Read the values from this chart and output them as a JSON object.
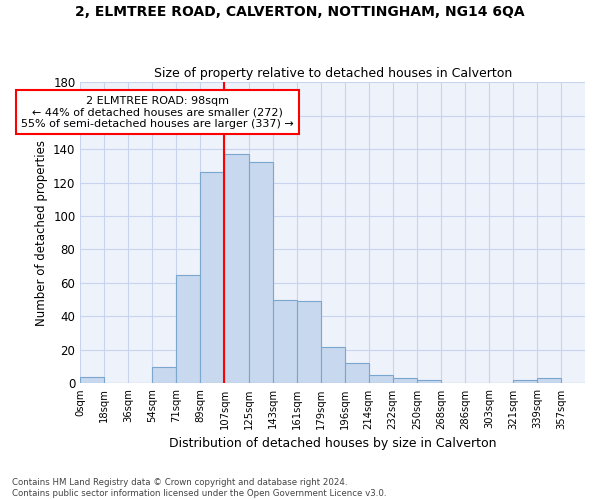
{
  "title1": "2, ELMTREE ROAD, CALVERTON, NOTTINGHAM, NG14 6QA",
  "title2": "Size of property relative to detached houses in Calverton",
  "xlabel": "Distribution of detached houses by size in Calverton",
  "ylabel": "Number of detached properties",
  "bar_color": "#c8d8ef",
  "bar_edge_color": "#7ba7cf",
  "background_color": "#eef2fb",
  "grid_color": "#c8d4ee",
  "property_size": 98,
  "property_label": "2 ELMTREE ROAD: 98sqm",
  "annotation_line1": "← 44% of detached houses are smaller (272)",
  "annotation_line2": "55% of semi-detached houses are larger (337) →",
  "footer1": "Contains HM Land Registry data © Crown copyright and database right 2024.",
  "footer2": "Contains public sector information licensed under the Open Government Licence v3.0.",
  "bin_labels": [
    "0sqm",
    "18sqm",
    "36sqm",
    "54sqm",
    "71sqm",
    "89sqm",
    "107sqm",
    "125sqm",
    "143sqm",
    "161sqm",
    "179sqm",
    "196sqm",
    "214sqm",
    "232sqm",
    "250sqm",
    "268sqm",
    "286sqm",
    "303sqm",
    "321sqm",
    "339sqm",
    "357sqm"
  ],
  "counts": [
    4,
    0,
    0,
    10,
    65,
    126,
    137,
    132,
    50,
    49,
    22,
    12,
    5,
    3,
    2,
    0,
    0,
    0,
    2,
    3,
    0
  ],
  "ylim": [
    0,
    180
  ],
  "yticks": [
    0,
    20,
    40,
    60,
    80,
    100,
    120,
    140,
    160,
    180
  ],
  "red_line_index": 6
}
